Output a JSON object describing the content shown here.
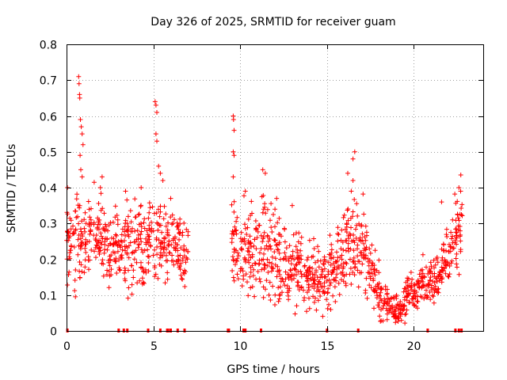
{
  "chart_data": {
    "type": "scatter",
    "title": "Day 326 of 2025, SRMTID for receiver guam",
    "xlabel": "GPS time / hours",
    "ylabel": "SRMTID / TECUs",
    "xlim": [
      0,
      24
    ],
    "ylim": [
      0,
      0.8
    ],
    "x_ticks": [
      0,
      5,
      10,
      15,
      20
    ],
    "x_tick_labels": [
      "0",
      "5",
      "10",
      "15",
      "20"
    ],
    "y_ticks": [
      0,
      0.1,
      0.2,
      0.3,
      0.4,
      0.5,
      0.6,
      0.7,
      0.8
    ],
    "y_tick_labels": [
      "0",
      "0.1",
      "0.2",
      "0.3",
      "0.4",
      "0.5",
      "0.6",
      "0.7",
      "0.8"
    ],
    "grid": true,
    "marker": "+",
    "color": "#ff0000",
    "trend": [
      [
        0.0,
        0.26,
        0.07
      ],
      [
        0.5,
        0.25,
        0.07
      ],
      [
        1.0,
        0.27,
        0.06
      ],
      [
        1.5,
        0.28,
        0.06
      ],
      [
        2.0,
        0.25,
        0.07
      ],
      [
        2.5,
        0.22,
        0.06
      ],
      [
        3.0,
        0.23,
        0.07
      ],
      [
        3.5,
        0.24,
        0.07
      ],
      [
        4.0,
        0.24,
        0.07
      ],
      [
        4.5,
        0.25,
        0.07
      ],
      [
        5.0,
        0.26,
        0.07
      ],
      [
        5.5,
        0.26,
        0.06
      ],
      [
        6.0,
        0.24,
        0.05
      ],
      [
        6.5,
        0.23,
        0.05
      ],
      [
        7.0,
        0.21,
        0.04
      ],
      [
        9.5,
        0.22,
        0.06
      ],
      [
        10.0,
        0.22,
        0.07
      ],
      [
        10.5,
        0.23,
        0.07
      ],
      [
        11.0,
        0.24,
        0.07
      ],
      [
        11.5,
        0.23,
        0.07
      ],
      [
        12.0,
        0.21,
        0.07
      ],
      [
        12.5,
        0.19,
        0.06
      ],
      [
        13.0,
        0.18,
        0.06
      ],
      [
        13.5,
        0.17,
        0.05
      ],
      [
        14.0,
        0.15,
        0.05
      ],
      [
        14.5,
        0.14,
        0.05
      ],
      [
        15.0,
        0.15,
        0.05
      ],
      [
        15.5,
        0.18,
        0.05
      ],
      [
        16.0,
        0.22,
        0.06
      ],
      [
        16.5,
        0.26,
        0.07
      ],
      [
        17.0,
        0.25,
        0.07
      ],
      [
        17.5,
        0.16,
        0.05
      ],
      [
        18.0,
        0.11,
        0.04
      ],
      [
        18.5,
        0.07,
        0.02
      ],
      [
        19.0,
        0.06,
        0.02
      ],
      [
        19.5,
        0.08,
        0.03
      ],
      [
        20.0,
        0.12,
        0.03
      ],
      [
        20.5,
        0.14,
        0.03
      ],
      [
        21.0,
        0.14,
        0.03
      ],
      [
        21.5,
        0.17,
        0.04
      ],
      [
        22.0,
        0.22,
        0.05
      ],
      [
        22.5,
        0.28,
        0.06
      ],
      [
        22.8,
        0.33,
        0.07
      ]
    ],
    "outliers": [
      [
        0.05,
        0.4
      ],
      [
        0.7,
        0.71
      ],
      [
        0.72,
        0.69
      ],
      [
        0.75,
        0.66
      ],
      [
        0.76,
        0.65
      ],
      [
        0.8,
        0.59
      ],
      [
        0.85,
        0.57
      ],
      [
        0.9,
        0.55
      ],
      [
        0.95,
        0.52
      ],
      [
        0.78,
        0.49
      ],
      [
        0.82,
        0.45
      ],
      [
        0.9,
        0.43
      ],
      [
        1.95,
        0.4
      ],
      [
        2.05,
        0.43
      ],
      [
        3.4,
        0.39
      ],
      [
        4.3,
        0.4
      ],
      [
        5.1,
        0.64
      ],
      [
        5.15,
        0.63
      ],
      [
        5.2,
        0.61
      ],
      [
        5.15,
        0.55
      ],
      [
        5.2,
        0.53
      ],
      [
        5.3,
        0.46
      ],
      [
        5.4,
        0.44
      ],
      [
        5.55,
        0.42
      ],
      [
        6.0,
        0.37
      ],
      [
        9.6,
        0.6
      ],
      [
        9.62,
        0.59
      ],
      [
        9.65,
        0.56
      ],
      [
        9.6,
        0.5
      ],
      [
        9.65,
        0.49
      ],
      [
        9.6,
        0.43
      ],
      [
        10.3,
        0.39
      ],
      [
        11.3,
        0.45
      ],
      [
        11.45,
        0.44
      ],
      [
        12.1,
        0.37
      ],
      [
        13.0,
        0.35
      ],
      [
        16.2,
        0.44
      ],
      [
        16.5,
        0.48
      ],
      [
        16.6,
        0.5
      ],
      [
        16.5,
        0.42
      ],
      [
        16.4,
        0.39
      ],
      [
        21.6,
        0.36
      ],
      [
        22.6,
        0.4
      ],
      [
        22.7,
        0.39
      ]
    ],
    "zero_markers": [
      0.05,
      3.0,
      3.3,
      3.5,
      4.7,
      5.4,
      5.8,
      5.85,
      6.0,
      6.4,
      6.8,
      9.3,
      9.35,
      10.2,
      10.25,
      10.3,
      11.2,
      15.0,
      16.8,
      20.8,
      22.4,
      22.6,
      22.75
    ]
  }
}
